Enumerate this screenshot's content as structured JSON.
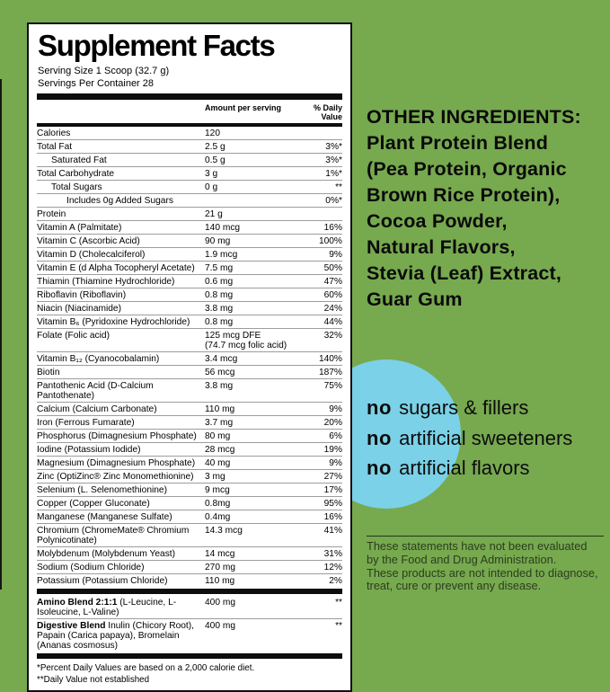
{
  "colors": {
    "background_green": "#77A94F",
    "circle_blue": "#7BD1E7",
    "panel_white": "#FFFFFF",
    "text_black": "#000000",
    "disclaimer_dark_green": "#2B3D1E"
  },
  "label": {
    "title": "Supplement Facts",
    "serving_size": "Serving Size 1 Scoop (32.7 g)",
    "servings_per_container": "Servings Per Container 28",
    "columns": {
      "amount": "Amount per serving",
      "daily_value": "% Daily Value"
    },
    "rows": [
      {
        "name": "Calories",
        "amount": "120",
        "dv": "",
        "indent": 0
      },
      {
        "name": "Total Fat",
        "amount": "2.5 g",
        "dv": "3%*",
        "indent": 0
      },
      {
        "name": "Saturated Fat",
        "amount": "0.5 g",
        "dv": "3%*",
        "indent": 1
      },
      {
        "name": "Total Carbohydrate",
        "amount": "3 g",
        "dv": "1%*",
        "indent": 0
      },
      {
        "name": "Total Sugars",
        "amount": "0 g",
        "dv": "**",
        "indent": 1
      },
      {
        "name": "Includes 0g Added Sugars",
        "amount": "",
        "dv": "0%*",
        "indent": 2
      },
      {
        "name": "Protein",
        "amount": "21 g",
        "dv": "",
        "indent": 0
      },
      {
        "name": "Vitamin A (Palmitate)",
        "amount": "140 mcg",
        "dv": "16%",
        "indent": 0
      },
      {
        "name": "Vitamin C (Ascorbic Acid)",
        "amount": "90 mg",
        "dv": "100%",
        "indent": 0
      },
      {
        "name": "Vitamin D (Cholecalciferol)",
        "amount": "1.9 mcg",
        "dv": "9%",
        "indent": 0
      },
      {
        "name": "Vitamin E (d Alpha Tocopheryl Acetate)",
        "amount": "7.5 mg",
        "dv": "50%",
        "indent": 0
      },
      {
        "name": "Thiamin (Thiamine Hydrochloride)",
        "amount": "0.6 mg",
        "dv": "47%",
        "indent": 0
      },
      {
        "name": "Riboflavin (Riboflavin)",
        "amount": "0.8 mg",
        "dv": "60%",
        "indent": 0
      },
      {
        "name": "Niacin (Niacinamide)",
        "amount": "3.8 mg",
        "dv": "24%",
        "indent": 0
      },
      {
        "name": "Vitamin B₆ (Pyridoxine Hydrochloride)",
        "amount": "0.8 mg",
        "dv": "44%",
        "indent": 0
      },
      {
        "name": "Folate (Folic acid)",
        "amount": "125 mcg DFE",
        "amount2": "(74.7 mcg folic acid)",
        "dv": "32%",
        "indent": 0
      },
      {
        "name": "Vitamin B₁₂ (Cyanocobalamin)",
        "amount": "3.4 mcg",
        "dv": "140%",
        "indent": 0
      },
      {
        "name": "Biotin",
        "amount": "56 mcg",
        "dv": "187%",
        "indent": 0
      },
      {
        "name": "Pantothenic Acid (D-Calcium Pantothenate)",
        "amount": "3.8 mg",
        "dv": "75%",
        "indent": 0
      },
      {
        "name": "Calcium (Calcium Carbonate)",
        "amount": "110 mg",
        "dv": "9%",
        "indent": 0
      },
      {
        "name": "Iron (Ferrous Fumarate)",
        "amount": "3.7 mg",
        "dv": "20%",
        "indent": 0
      },
      {
        "name": "Phosphorus (Dimagnesium Phosphate)",
        "amount": "80 mg",
        "dv": "6%",
        "indent": 0
      },
      {
        "name": "Iodine (Potassium Iodide)",
        "amount": "28 mcg",
        "dv": "19%",
        "indent": 0
      },
      {
        "name": "Magnesium (Dimagnesium Phosphate)",
        "amount": "40 mg",
        "dv": "9%",
        "indent": 0
      },
      {
        "name": "Zinc (OptiZinc® Zinc Monomethionine)",
        "amount": "3 mg",
        "dv": "27%",
        "indent": 0
      },
      {
        "name": "Selenium (L. Selenomethionine)",
        "amount": "9 mcg",
        "dv": "17%",
        "indent": 0
      },
      {
        "name": "Copper (Copper Gluconate)",
        "amount": "0.8mg",
        "dv": "95%",
        "indent": 0
      },
      {
        "name": "Manganese (Manganese Sulfate)",
        "amount": "0.4mg",
        "dv": "16%",
        "indent": 0
      },
      {
        "name": "Chromium (ChromeMate® Chromium Polynicotinate)",
        "amount": "14.3 mcg",
        "dv": "41%",
        "indent": 0
      },
      {
        "name": "Molybdenum (Molybdenum Yeast)",
        "amount": "14 mcg",
        "dv": "31%",
        "indent": 0
      },
      {
        "name": "Sodium (Sodium Chloride)",
        "amount": "270 mg",
        "dv": "12%",
        "indent": 0
      },
      {
        "name": "Potassium (Potassium Chloride)",
        "amount": "110 mg",
        "dv": "2%",
        "indent": 0
      }
    ],
    "blends": [
      {
        "name_bold": "Amino Blend 2:1:1",
        "name_rest": " (L-Leucine, L-Isoleucine, L-Valine)",
        "amount": "400 mg",
        "dv": "**"
      },
      {
        "name_bold": "Digestive Blend",
        "name_rest": " Inulin (Chicory Root), Papain (Carica papaya), Bromelain (Ananas cosmosus)",
        "amount": "400 mg",
        "dv": "**"
      }
    ],
    "footnotes": [
      "*Percent Daily Values are based on a 2,000 calorie diet.",
      "**Daily Value not established"
    ]
  },
  "right_panel": {
    "other_ingredients": {
      "heading": "OTHER INGREDIENTS:",
      "lines": [
        "Plant Protein Blend",
        "(Pea Protein, Organic",
        "Brown Rice Protein),",
        "Cocoa Powder,",
        "Natural Flavors,",
        "Stevia (Leaf) Extract,",
        "Guar Gum"
      ]
    },
    "claims": [
      {
        "emphasis": "no",
        "text": "sugars & fillers"
      },
      {
        "emphasis": "no",
        "text": "artificial sweeteners"
      },
      {
        "emphasis": "no",
        "text": "artificial flavors"
      }
    ],
    "disclaimer_lines": [
      "These statements have not been evaluated",
      "by the Food and Drug Administration.",
      "These products are not intended to diagnose,",
      "treat, cure or prevent any disease."
    ]
  }
}
